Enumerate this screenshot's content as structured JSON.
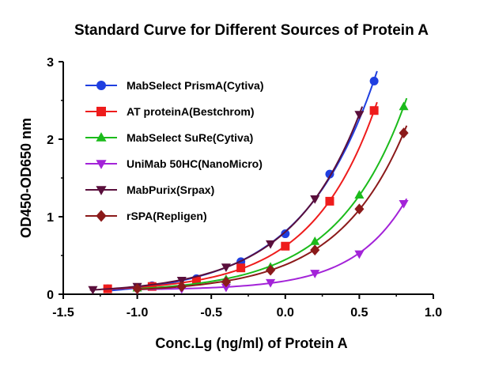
{
  "chart_data": {
    "type": "scatter",
    "title": "Standard Curve for Different Sources of Protein A",
    "xlabel": "Conc.Lg (ng/ml) of Protein A",
    "ylabel": "OD450-OD650 nm",
    "xlim": [
      -1.5,
      1.0
    ],
    "ylim": [
      0,
      3
    ],
    "xticks": [
      "-1.5",
      "-1.0",
      "-0.5",
      "0.0",
      "0.5",
      "1.0"
    ],
    "yticks": [
      "0",
      "1",
      "2",
      "3"
    ],
    "grid": false,
    "legend_position": "top-left",
    "fit_lines": true,
    "series": [
      {
        "name": "MabSelect PrismA(Cytiva)",
        "color": "#1f3fe0",
        "marker": "circle",
        "x": [
          -1.2,
          -0.9,
          -0.6,
          -0.3,
          0.0,
          0.3,
          0.6
        ],
        "y": [
          0.07,
          0.11,
          0.2,
          0.42,
          0.78,
          1.55,
          2.75
        ]
      },
      {
        "name": "AT proteinA(Bestchrom)",
        "color": "#ee1c1c",
        "marker": "square",
        "x": [
          -1.2,
          -0.9,
          -0.6,
          -0.3,
          0.0,
          0.3,
          0.6
        ],
        "y": [
          0.07,
          0.1,
          0.17,
          0.34,
          0.62,
          1.2,
          2.37
        ]
      },
      {
        "name": "MabSelect SuRe(Cytiva)",
        "color": "#1bbb1b",
        "marker": "triangle-up",
        "x": [
          -1.0,
          -0.7,
          -0.4,
          -0.1,
          0.2,
          0.5,
          0.8
        ],
        "y": [
          0.08,
          0.12,
          0.19,
          0.35,
          0.68,
          1.28,
          2.42
        ]
      },
      {
        "name": "UniMab 50HC(NanoMicro)",
        "color": "#a323d8",
        "marker": "triangle-down",
        "x": [
          -1.0,
          -0.7,
          -0.4,
          -0.1,
          0.2,
          0.5,
          0.8
        ],
        "y": [
          0.06,
          0.07,
          0.09,
          0.15,
          0.27,
          0.52,
          1.17
        ]
      },
      {
        "name": "MabPurix(Srpax)",
        "color": "#5a0f3c",
        "marker": "triangle-down",
        "x": [
          -1.3,
          -1.0,
          -0.7,
          -0.4,
          -0.1,
          0.2,
          0.5
        ],
        "y": [
          0.06,
          0.1,
          0.18,
          0.35,
          0.65,
          1.23,
          2.32
        ]
      },
      {
        "name": "rSPA(Repligen)",
        "color": "#8b1a1a",
        "marker": "diamond",
        "x": [
          -1.0,
          -0.7,
          -0.4,
          -0.1,
          0.2,
          0.5,
          0.8
        ],
        "y": [
          0.07,
          0.1,
          0.16,
          0.31,
          0.57,
          1.1,
          2.08
        ]
      }
    ]
  }
}
